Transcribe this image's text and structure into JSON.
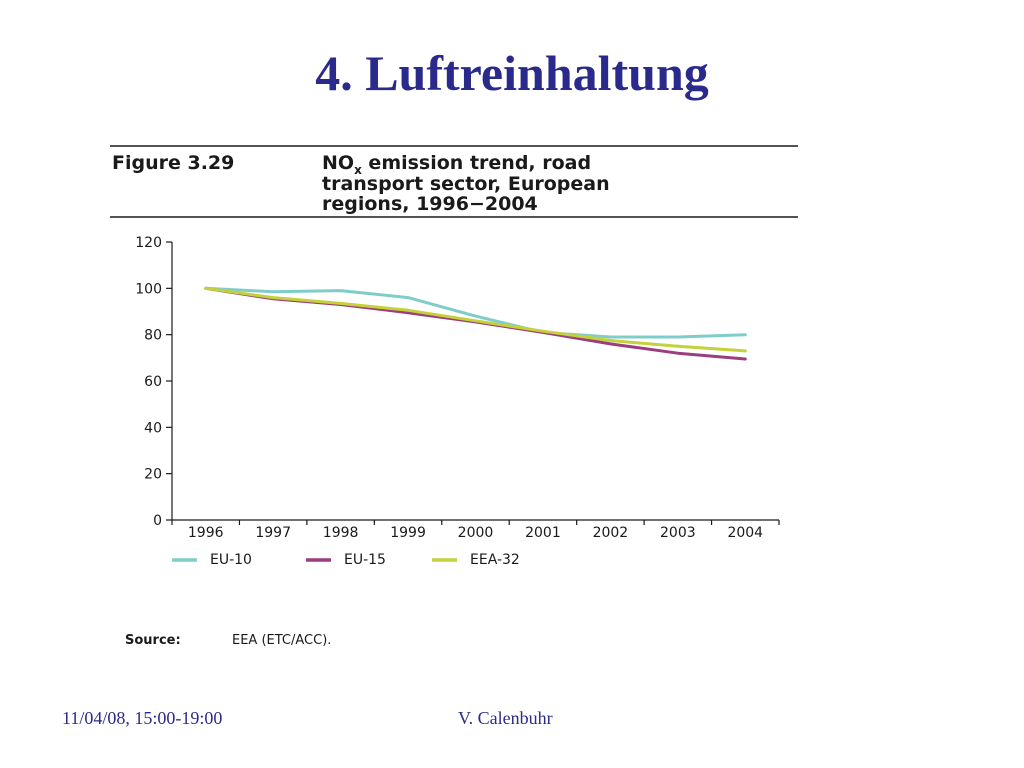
{
  "slide": {
    "title": "4. Luftreinhaltung",
    "footer_left": "11/04/08, 15:00-19:00",
    "footer_right": "V. Calenbuhr"
  },
  "figure": {
    "label": "Figure 3.29",
    "caption_prefix": "NO",
    "caption_subscript": "x",
    "caption_line1_rest": " emission trend, road",
    "caption_line2": "transport sector, European",
    "caption_line3": "regions, 1996−2004",
    "source_label": "Source:",
    "source_text": "EEA (ETC/ACC)."
  },
  "chart_data": {
    "type": "line",
    "title": "NOx emission trend, road transport sector, European regions, 1996−2004",
    "xlabel": "",
    "ylabel": "",
    "categories": [
      "1996",
      "1997",
      "1998",
      "1999",
      "2000",
      "2001",
      "2002",
      "2003",
      "2004"
    ],
    "ylim": [
      0,
      120
    ],
    "yticks": [
      0,
      20,
      40,
      60,
      80,
      100,
      120
    ],
    "grid": false,
    "legend": "bottom",
    "series": [
      {
        "name": "EU-10",
        "color": "#7fcdc8",
        "values": [
          100,
          98.5,
          99,
          96,
          88,
          81,
          79,
          79,
          80
        ]
      },
      {
        "name": "EU-15",
        "color": "#9b3d7e",
        "values": [
          100,
          95.5,
          93,
          89.5,
          85.5,
          81,
          76,
          72,
          69.5
        ]
      },
      {
        "name": "EEA-32",
        "color": "#c5d13a",
        "values": [
          100,
          96,
          93.5,
          90.5,
          86,
          81.5,
          77.5,
          75,
          73
        ]
      }
    ]
  }
}
